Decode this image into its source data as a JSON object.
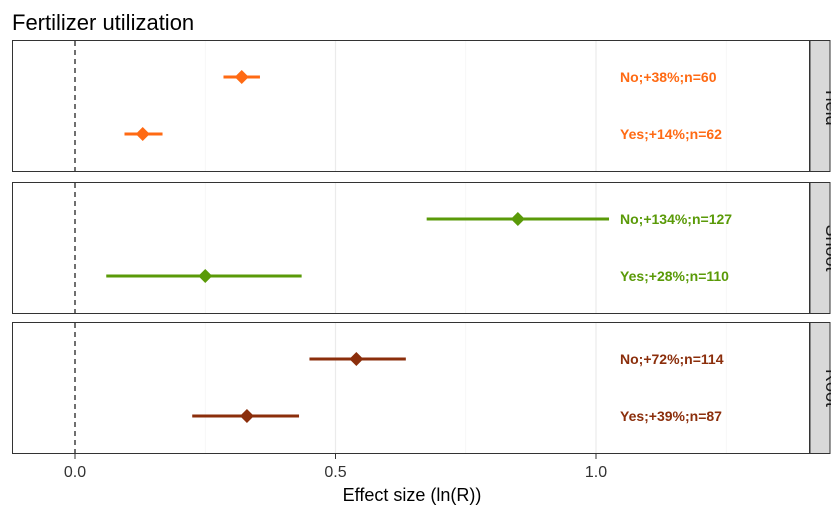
{
  "chart_data": {
    "type": "forest",
    "title": "Fertilizer utilization",
    "xlabel": "Effect size (ln(R))",
    "xlim": [
      -0.12,
      1.4
    ],
    "xticks": [
      0.0,
      0.5,
      1.0
    ],
    "xtick_labels": [
      "0.0",
      "0.5",
      "1.0"
    ],
    "reference_line": 0,
    "grid": true,
    "panels": [
      {
        "strip": "Yield",
        "color": "#FF6A13",
        "rows": [
          {
            "estimate": 0.32,
            "ci_low": 0.285,
            "ci_high": 0.355,
            "label": "No;+38%;n=60"
          },
          {
            "estimate": 0.13,
            "ci_low": 0.095,
            "ci_high": 0.168,
            "label": "Yes;+14%;n=62"
          }
        ]
      },
      {
        "strip": "Shoot",
        "color": "#5A9A08",
        "rows": [
          {
            "estimate": 0.85,
            "ci_low": 0.675,
            "ci_high": 1.025,
            "label": "No;+134%;n=127"
          },
          {
            "estimate": 0.25,
            "ci_low": 0.06,
            "ci_high": 0.435,
            "label": "Yes;+28%;n=110"
          }
        ]
      },
      {
        "strip": "Root",
        "color": "#8B2E0B",
        "rows": [
          {
            "estimate": 0.54,
            "ci_low": 0.45,
            "ci_high": 0.635,
            "label": "No;+72%;n=114"
          },
          {
            "estimate": 0.33,
            "ci_low": 0.225,
            "ci_high": 0.43,
            "label": "Yes;+39%;n=87"
          }
        ]
      }
    ]
  }
}
